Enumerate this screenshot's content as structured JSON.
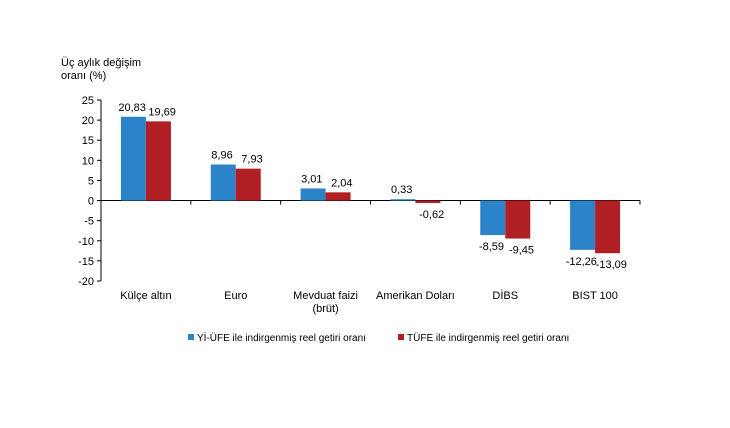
{
  "chart_data": {
    "type": "bar",
    "ylabel": "Üç aylık değişim\noranı (%)",
    "xlabel": "",
    "categories": [
      "Külçe altın",
      "Euro",
      "Mevduat faizi\n(brüt)",
      "Amerikan Doları",
      "DİBS",
      "BIST 100"
    ],
    "series": [
      {
        "name": "Yİ-ÜFE ile indirgenmiş reel getiri oranı",
        "color": "#2B83C9",
        "values": [
          20.83,
          8.96,
          3.01,
          0.33,
          -8.59,
          -12.26
        ],
        "labels": [
          "20,83",
          "8,96",
          "3,01",
          "0,33",
          "-8,59",
          "-12,26"
        ]
      },
      {
        "name": "TÜFE ile indirgenmiş reel getiri oranı",
        "color": "#B01F24",
        "values": [
          19.69,
          7.93,
          2.04,
          -0.62,
          -9.45,
          -13.09
        ],
        "labels": [
          "19,69",
          "7,93",
          "2,04",
          "-0,62",
          "-9,45",
          "-13,09"
        ]
      }
    ],
    "ylim": [
      -20,
      25
    ],
    "yticks": [
      25,
      20,
      15,
      10,
      5,
      0,
      -5,
      -10,
      -15,
      -20
    ],
    "legend_position": "bottom",
    "grid": false
  }
}
